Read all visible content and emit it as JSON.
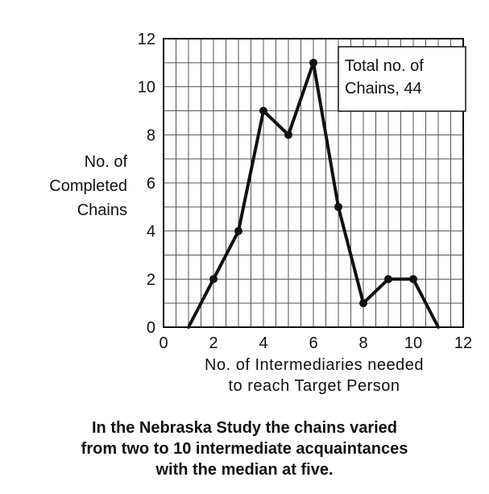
{
  "chart_data": {
    "type": "line",
    "x": [
      1,
      2,
      3,
      4,
      5,
      6,
      7,
      8,
      9,
      10,
      11
    ],
    "y": [
      0,
      2,
      4,
      9,
      8,
      11,
      5,
      1,
      2,
      2,
      0
    ],
    "xlabel_line1": "No. of Intermediaries needed",
    "xlabel_line2": "to reach Target Person",
    "ylabel_line1": "No. of",
    "ylabel_line2": "Completed",
    "ylabel_line3": "Chains",
    "xlim": [
      0,
      12
    ],
    "ylim": [
      0,
      12
    ],
    "x_ticks": [
      0,
      2,
      4,
      6,
      8,
      10,
      12
    ],
    "y_ticks": [
      0,
      2,
      4,
      6,
      8,
      10,
      12
    ],
    "grid": true,
    "annotation_line1": "Total no. of",
    "annotation_line2": "Chains, 44",
    "annotation_placement": "top-right"
  },
  "caption": {
    "line1": "In the Nebraska Study the chains varied",
    "line2": "from two to 10 intermediate acquaintances",
    "line3": "with the median at five."
  }
}
